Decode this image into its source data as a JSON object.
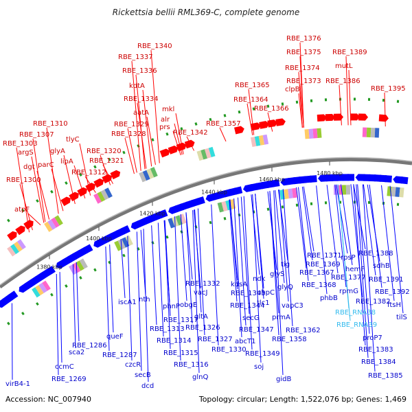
{
  "title": "Rickettsia bellii RML369-C, complete genome",
  "footer": {
    "accession": "Accession: NC_007940",
    "summary": "Topology: circular; Length: 1,522,076 bp; Genes: 1,469"
  },
  "colors": {
    "forward": "#ff0000",
    "reverse": "#0000ff",
    "rna": "#33bbee",
    "backbone": "#888888"
  },
  "kbp_ticks": [
    "1380 kbp",
    "1400 kbp",
    "1420 kbp",
    "1440 kbp",
    "1460 kbp",
    "1480 kbp"
  ],
  "labels_top": [
    "RBE_1340",
    "RBE_1337",
    "RBE_1336",
    "kdtA",
    "RBE_1334",
    "aatA",
    "RBE_1329",
    "RBE_1328",
    "mkl",
    "alr",
    "prs",
    "RBE_1342",
    "RBE_1357",
    "RBE_1365",
    "RBE_1364",
    "RBE_1366",
    "RBE_1376",
    "RBE_1375",
    "RBE_1374",
    "RBE_1373",
    "clpB",
    "RBE_1389",
    "mutL",
    "RBE_1386",
    "RBE_1395",
    "RBE_1310",
    "RBE_1307",
    "RBE_1303",
    "argS",
    "dgt",
    "parC",
    "glyA",
    "tlyC",
    "lipA",
    "RBE_1320",
    "RBE_1321",
    "RBE_1312",
    "RBE_1300",
    "atpF"
  ],
  "labels_bottom": [
    "RBE_1371",
    "RBE_1369",
    "RBE_1367",
    "RBE_1368",
    "phbB",
    "tig",
    "glyS",
    "glyQ",
    "ndk",
    "uhpC",
    "vapC3",
    "tlc1",
    "prmA",
    "RBE_1362",
    "RBE_1358",
    "kdsA",
    "RBE_1343",
    "RBE_1344",
    "secG",
    "RBE_1347",
    "abcT1",
    "RBE_1349",
    "soj",
    "gidB",
    "RBE_1332",
    "vacJ",
    "obgE",
    "gltA",
    "RBE_1326",
    "RBE_1327",
    "RBE_1330",
    "phnP",
    "RBE_1317",
    "RBE_1313",
    "RBE_1314",
    "RBE_1315",
    "RBE_1316",
    "glnQ",
    "nth",
    "iscA1",
    "queF",
    "RBE_1287",
    "czcR",
    "secB",
    "dcd",
    "RBE_1286",
    "sca2",
    "ccmC",
    "RBE_1269",
    "virB4-1",
    "rpsP",
    "hemF",
    "RBE_1377",
    "rpmG",
    "RBE_1382",
    "RBE_1388",
    "sdhB",
    "RBE_1391",
    "RBE_1392",
    "ftsH",
    "tilS",
    "proP7",
    "RBE_1383",
    "RBE_1384",
    "RBE_1385"
  ],
  "labels_rna": [
    "RBE_RNA38",
    "RBE_RNA39"
  ]
}
